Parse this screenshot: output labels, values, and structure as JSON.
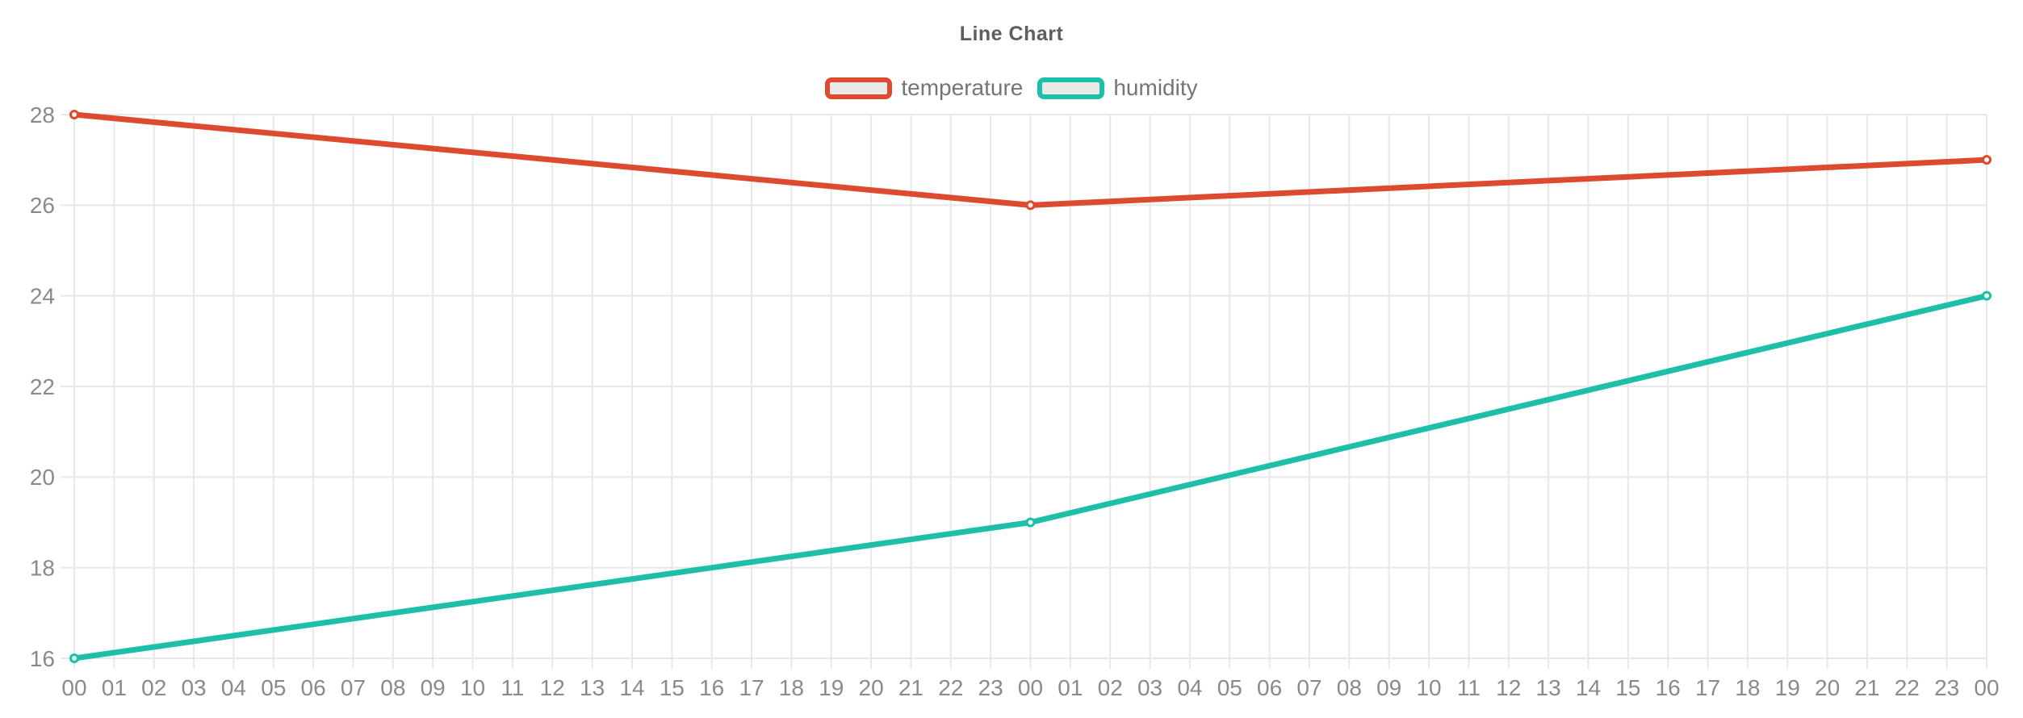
{
  "chart_data": {
    "type": "line",
    "title": "Line Chart",
    "legend_position": "top-center",
    "grid": true,
    "ylim": [
      16,
      28
    ],
    "y_tick_labels": [
      "16",
      "18",
      "20",
      "22",
      "24",
      "26",
      "28"
    ],
    "y_ticks": [
      16,
      18,
      20,
      22,
      24,
      26,
      28
    ],
    "x_tick_labels": [
      "00",
      "01",
      "02",
      "03",
      "04",
      "05",
      "06",
      "07",
      "08",
      "09",
      "10",
      "11",
      "12",
      "13",
      "14",
      "15",
      "16",
      "17",
      "18",
      "19",
      "20",
      "21",
      "22",
      "23",
      "00",
      "01",
      "02",
      "03",
      "04",
      "05",
      "06",
      "07",
      "08",
      "09",
      "10",
      "11",
      "12",
      "13",
      "14",
      "15",
      "16",
      "17",
      "18",
      "19",
      "20",
      "21",
      "22",
      "23",
      "00"
    ],
    "series": [
      {
        "name": "temperature",
        "color": "#dd4a2f",
        "points": [
          {
            "x_index": 0,
            "x_label": "00",
            "value": 28
          },
          {
            "x_index": 24,
            "x_label": "00",
            "value": 26
          },
          {
            "x_index": 48,
            "x_label": "00",
            "value": 27
          }
        ]
      },
      {
        "name": "humidity",
        "color": "#1dbfa9",
        "points": [
          {
            "x_index": 0,
            "x_label": "00",
            "value": 16
          },
          {
            "x_index": 24,
            "x_label": "00",
            "value": 19
          },
          {
            "x_index": 48,
            "x_label": "00",
            "value": 24
          }
        ]
      }
    ],
    "colors": {
      "background": "#ffffff",
      "grid": "#e8e8e8",
      "axis_text": "#8a8a8a",
      "title_text": "#5e5e5e",
      "legend_text": "#757575",
      "legend_swatch_fill": "#e9e9e9",
      "marker_fill": "#f3f3f3"
    }
  }
}
